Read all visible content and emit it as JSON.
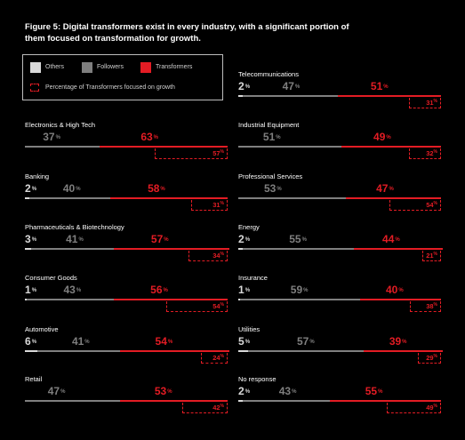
{
  "title": "Figure 5: Digital transformers exist in every industry, with a significant portion of them focused on transformation for growth.",
  "legend": {
    "others": "Others",
    "followers": "Followers",
    "transformers": "Transformers",
    "growth": "Percentage of Transformers focused on growth"
  },
  "colors": {
    "others": "#d9d9d9",
    "followers": "#7f7f7f",
    "transformers": "#e31c24"
  },
  "chart_data": {
    "type": "bar",
    "orientation": "horizontal-stacked",
    "stack_order": [
      "Others",
      "Followers",
      "Transformers"
    ],
    "unit": "%",
    "series": [
      {
        "name": "Others"
      },
      {
        "name": "Followers"
      },
      {
        "name": "Transformers"
      },
      {
        "name": "Percentage of Transformers focused on growth"
      }
    ],
    "categories": [
      {
        "name": "Electronics & High Tech",
        "others": 0,
        "followers": 37,
        "transformers": 63,
        "growth": 57
      },
      {
        "name": "Banking",
        "others": 2,
        "followers": 40,
        "transformers": 58,
        "growth": 31
      },
      {
        "name": "Pharmaceuticals & Biotechnology",
        "others": 3,
        "followers": 41,
        "transformers": 57,
        "growth": 34
      },
      {
        "name": "Consumer Goods",
        "others": 1,
        "followers": 43,
        "transformers": 56,
        "growth": 54
      },
      {
        "name": "Automotive",
        "others": 6,
        "followers": 41,
        "transformers": 54,
        "growth": 24
      },
      {
        "name": "Retail",
        "others": 0,
        "followers": 47,
        "transformers": 53,
        "growth": 42
      },
      {
        "name": "Telecommunications",
        "others": 2,
        "followers": 47,
        "transformers": 51,
        "growth": 31
      },
      {
        "name": "Industrial Equipment",
        "others": 0,
        "followers": 51,
        "transformers": 49,
        "growth": 32
      },
      {
        "name": "Professional Services",
        "others": 0,
        "followers": 53,
        "transformers": 47,
        "growth": 54
      },
      {
        "name": "Energy",
        "others": 2,
        "followers": 55,
        "transformers": 44,
        "growth": 21
      },
      {
        "name": "Insurance",
        "others": 1,
        "followers": 59,
        "transformers": 40,
        "growth": 38
      },
      {
        "name": "Utilities",
        "others": 5,
        "followers": 57,
        "transformers": 39,
        "growth": 29
      },
      {
        "name": "No response",
        "others": 2,
        "followers": 43,
        "transformers": 55,
        "growth": 49
      }
    ]
  }
}
